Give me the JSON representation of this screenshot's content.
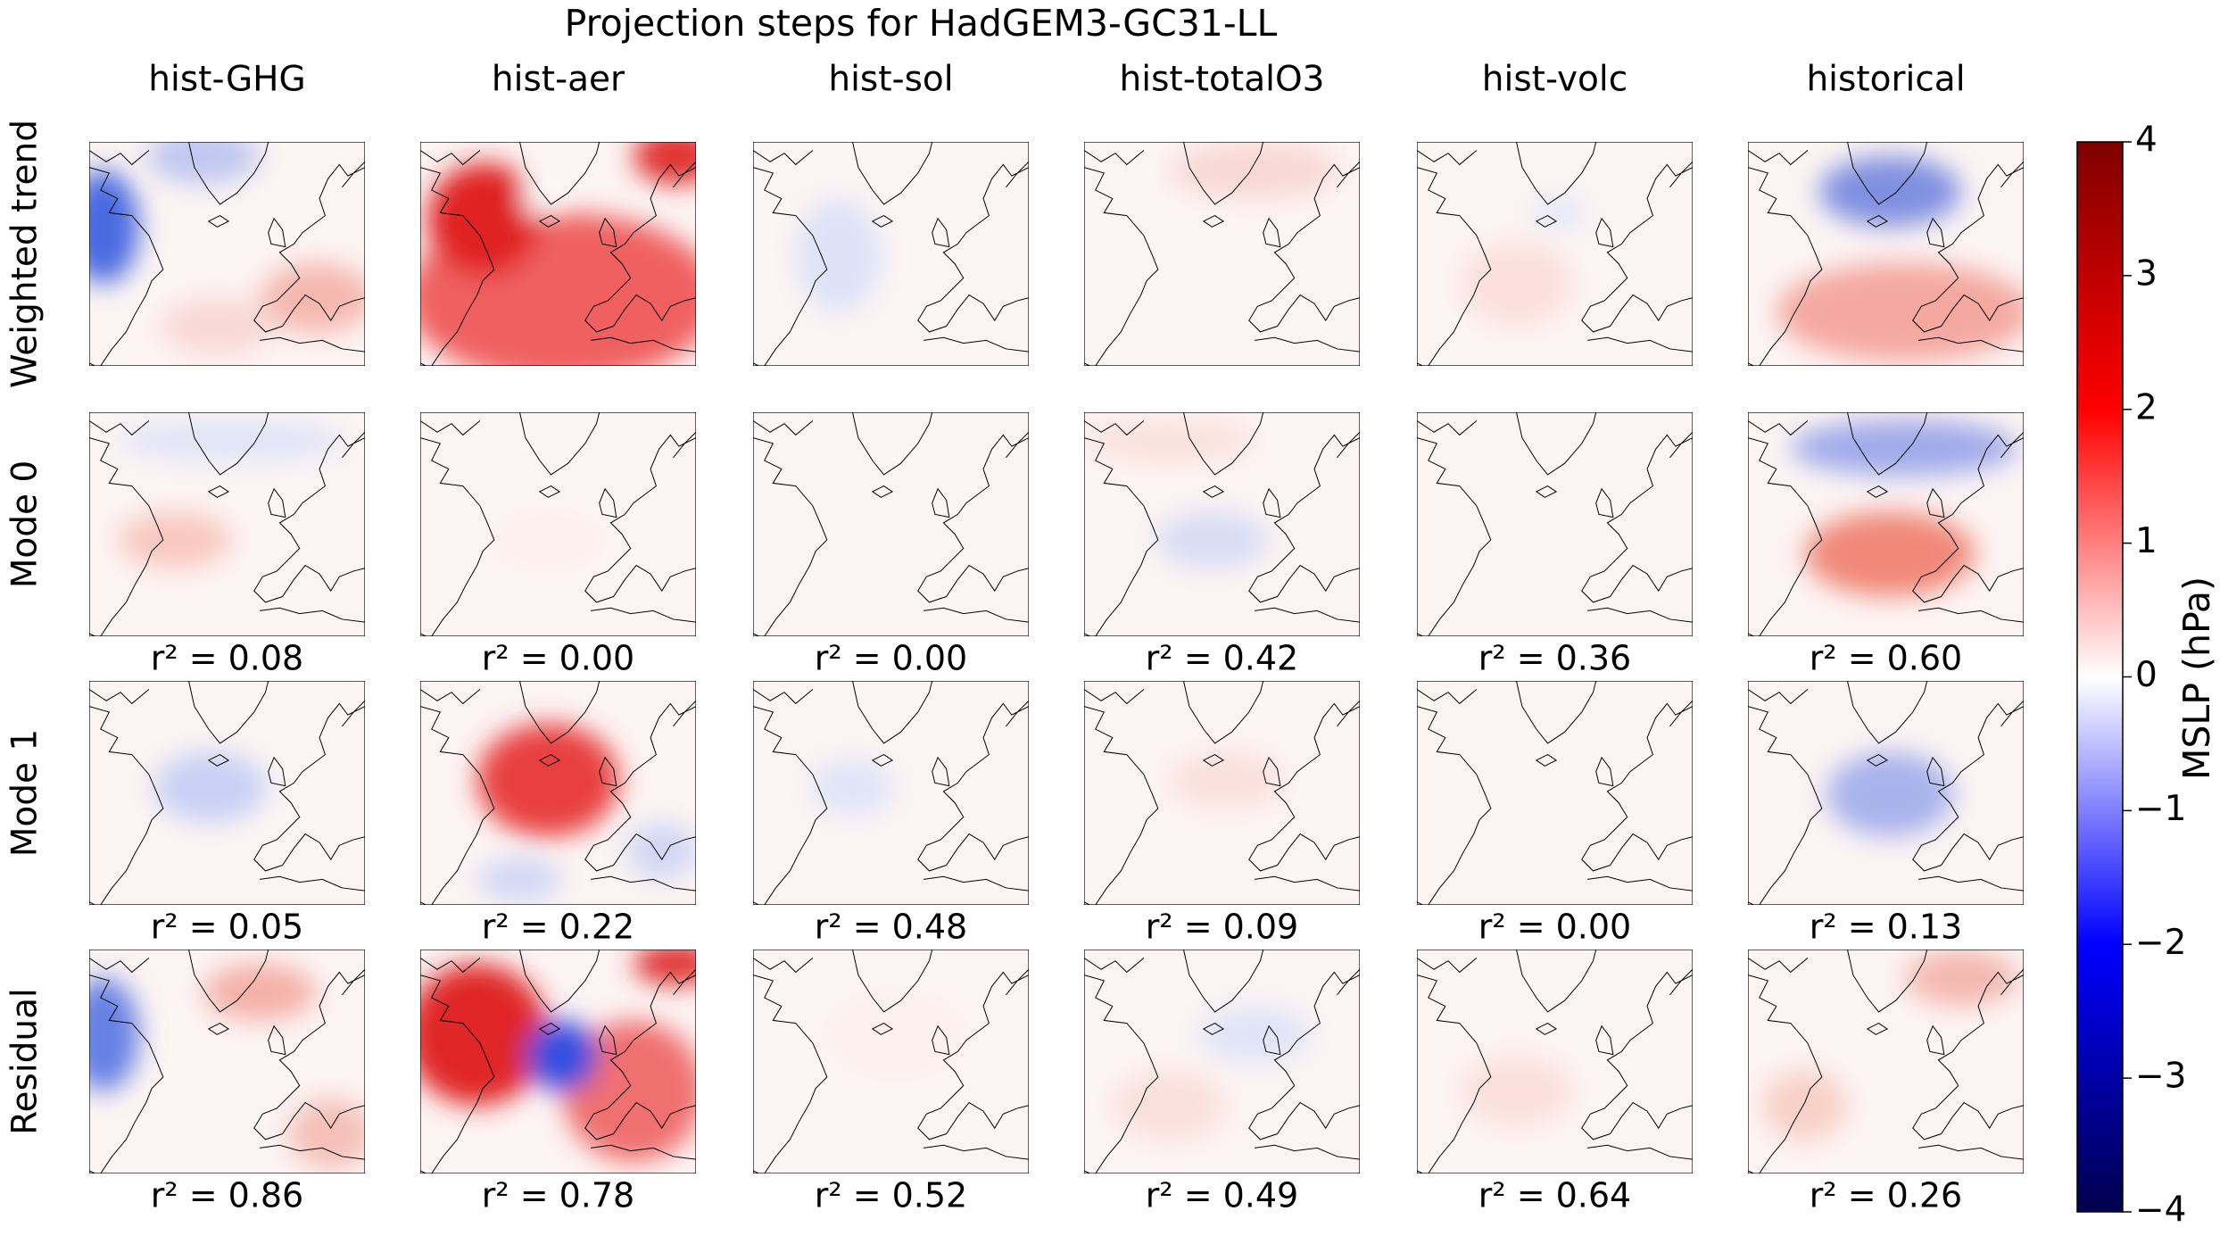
{
  "chart_data": {
    "type": "heatmap-grid",
    "title": "Projection steps for HadGEM3-GC31-LL",
    "columns": [
      "hist-GHG",
      "hist-aer",
      "hist-sol",
      "hist-totalO3",
      "hist-volc",
      "historical"
    ],
    "rows": [
      "Weighted trend",
      "Mode 0",
      "Mode 1",
      "Residual"
    ],
    "r2": [
      [
        {
          "value": 0.08,
          "label": "r² = 0.08"
        },
        {
          "value": 0.0,
          "label": "r² = 0.00"
        },
        {
          "value": 0.0,
          "label": "r² = 0.00"
        },
        {
          "value": 0.42,
          "label": "r² = 0.42"
        },
        {
          "value": 0.36,
          "label": "r² = 0.36"
        },
        {
          "value": 0.6,
          "label": "r² = 0.60"
        }
      ],
      [
        {
          "value": 0.05,
          "label": "r² = 0.05"
        },
        {
          "value": 0.22,
          "label": "r² = 0.22"
        },
        {
          "value": 0.48,
          "label": "r² = 0.48"
        },
        {
          "value": 0.09,
          "label": "r² = 0.09"
        },
        {
          "value": 0.0,
          "label": "r² = 0.00"
        },
        {
          "value": 0.13,
          "label": "r² = 0.13"
        }
      ],
      [
        {
          "value": 0.86,
          "label": "r² = 0.86"
        },
        {
          "value": 0.78,
          "label": "r² = 0.78"
        },
        {
          "value": 0.52,
          "label": "r² = 0.52"
        },
        {
          "value": 0.49,
          "label": "r² = 0.49"
        },
        {
          "value": 0.64,
          "label": "r² = 0.64"
        },
        {
          "value": 0.26,
          "label": "r² = 0.26"
        }
      ]
    ],
    "colorbar": {
      "label": "MSLP (hPa)",
      "colormap": "seismic",
      "zlim": [
        -4,
        4
      ],
      "zticks": [
        {
          "value": -4,
          "label": "−4"
        },
        {
          "value": -3,
          "label": "−3"
        },
        {
          "value": -2,
          "label": "−2"
        },
        {
          "value": -1,
          "label": "−1"
        },
        0,
        1,
        2,
        3,
        4
      ]
    }
  }
}
